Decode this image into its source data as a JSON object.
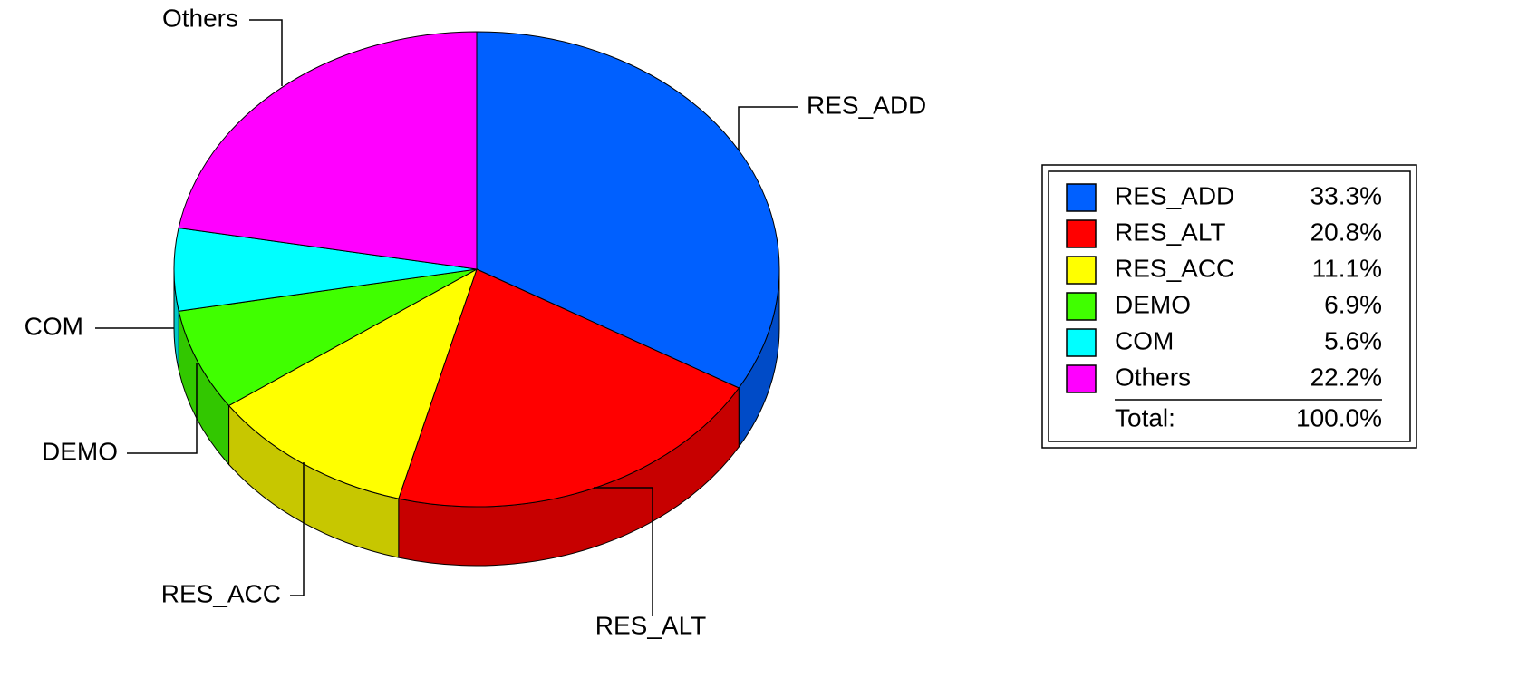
{
  "chart_data": {
    "type": "pie",
    "categories": [
      "RES_ADD",
      "RES_ALT",
      "RES_ACC",
      "DEMO",
      "COM",
      "Others"
    ],
    "values": [
      33.3,
      20.8,
      11.1,
      6.9,
      5.6,
      22.2
    ],
    "value_labels": [
      "33.3%",
      "20.8%",
      "11.1%",
      "6.9%",
      "5.6%",
      "22.2%"
    ],
    "colors": [
      "#0060ff",
      "#ff0000",
      "#ffff00",
      "#40ff00",
      "#00ffff",
      "#ff00ff"
    ],
    "total": {
      "label": "Total:",
      "value": 100,
      "value_label": "100.0%"
    },
    "legend": "right"
  }
}
